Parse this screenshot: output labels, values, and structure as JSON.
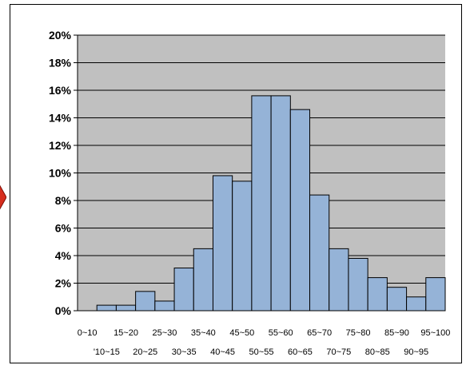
{
  "chart_data": {
    "type": "bar",
    "categories": [
      "0~10",
      "'10~15",
      "15~20",
      "20~25",
      "25~30",
      "30~35",
      "35~40",
      "40~45",
      "45~50",
      "50~55",
      "55~60",
      "60~65",
      "65~70",
      "70~75",
      "75~80",
      "80~85",
      "85~90",
      "90~95",
      "95~100"
    ],
    "values": [
      0.0,
      0.4,
      0.4,
      1.4,
      0.7,
      3.1,
      4.5,
      9.8,
      9.4,
      15.6,
      15.6,
      14.6,
      8.4,
      4.5,
      3.8,
      2.4,
      1.7,
      1.0,
      2.4
    ],
    "ylim": [
      0,
      20
    ],
    "yticks": [
      0,
      2,
      4,
      6,
      8,
      10,
      12,
      14,
      16,
      18,
      20
    ],
    "ytick_labels": [
      "0%",
      "2%",
      "4%",
      "6%",
      "8%",
      "10%",
      "12%",
      "14%",
      "16%",
      "18%",
      "20%"
    ],
    "grid": true,
    "colors": {
      "bar_fill": "#95b3d7",
      "bar_stroke": "#000000",
      "plot_bg": "#c0c0c0",
      "gridline": "#000000"
    }
  },
  "edge_marker": {
    "color": "#d62e1e"
  }
}
